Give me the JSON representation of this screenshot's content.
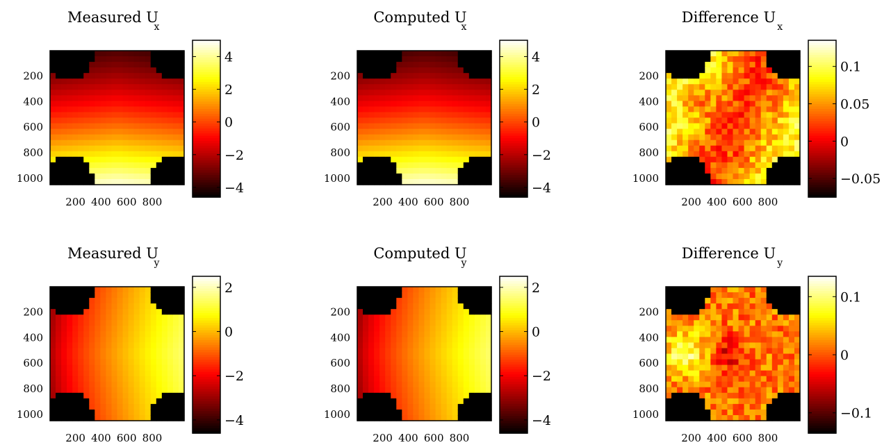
{
  "chart_data": [
    {
      "type": "heatmap",
      "title": "Measured U",
      "subscript": "x",
      "colormap": "hot",
      "x_ticks": [
        "200",
        "400",
        "600",
        "800"
      ],
      "y_ticks": [
        "200",
        "400",
        "600",
        "800",
        "1000"
      ],
      "colorbar_ticks": [
        {
          "value": 4,
          "label": "4"
        },
        {
          "value": 2,
          "label": "2"
        },
        {
          "value": 0,
          "label": "0"
        },
        {
          "value": -2,
          "label": "−2"
        },
        {
          "value": -4,
          "label": "−4"
        }
      ],
      "clim": [
        -4.6,
        5
      ],
      "field": "ux"
    },
    {
      "type": "heatmap",
      "title": "Computed U",
      "subscript": "x",
      "colormap": "hot",
      "x_ticks": [
        "200",
        "400",
        "600",
        "800"
      ],
      "y_ticks": [
        "200",
        "400",
        "600",
        "800",
        "1000"
      ],
      "colorbar_ticks": [
        {
          "value": 4,
          "label": "4"
        },
        {
          "value": 2,
          "label": "2"
        },
        {
          "value": 0,
          "label": "0"
        },
        {
          "value": -2,
          "label": "−2"
        },
        {
          "value": -4,
          "label": "−4"
        }
      ],
      "clim": [
        -4.6,
        5
      ],
      "field": "ux"
    },
    {
      "type": "heatmap",
      "title": "Difference U",
      "subscript": "x",
      "colormap": "hot",
      "x_ticks": [
        "200",
        "400",
        "600",
        "800"
      ],
      "y_ticks": [
        "200",
        "400",
        "600",
        "800",
        "1000"
      ],
      "colorbar_ticks": [
        {
          "value": 0.1,
          "label": "0.1"
        },
        {
          "value": 0.05,
          "label": "0.05"
        },
        {
          "value": 0,
          "label": "0"
        },
        {
          "value": -0.05,
          "label": "−0.05"
        }
      ],
      "clim": [
        -0.075,
        0.135
      ],
      "field": "dx"
    },
    {
      "type": "heatmap",
      "title": "Measured U",
      "subscript": "y",
      "colormap": "hot",
      "x_ticks": [
        "200",
        "400",
        "600",
        "800"
      ],
      "y_ticks": [
        "200",
        "400",
        "600",
        "800",
        "1000"
      ],
      "colorbar_ticks": [
        {
          "value": 2,
          "label": "2"
        },
        {
          "value": 0,
          "label": "0"
        },
        {
          "value": -2,
          "label": "−2"
        },
        {
          "value": -4,
          "label": "−4"
        }
      ],
      "clim": [
        -4.6,
        2.5
      ],
      "field": "uy"
    },
    {
      "type": "heatmap",
      "title": "Computed U",
      "subscript": "y",
      "colormap": "hot",
      "x_ticks": [
        "200",
        "400",
        "600",
        "800"
      ],
      "y_ticks": [
        "200",
        "400",
        "600",
        "800",
        "1000"
      ],
      "colorbar_ticks": [
        {
          "value": 2,
          "label": "2"
        },
        {
          "value": 0,
          "label": "0"
        },
        {
          "value": -2,
          "label": "−2"
        },
        {
          "value": -4,
          "label": "−4"
        }
      ],
      "clim": [
        -4.6,
        2.5
      ],
      "field": "uy"
    },
    {
      "type": "heatmap",
      "title": "Difference U",
      "subscript": "y",
      "colormap": "hot",
      "x_ticks": [
        "200",
        "400",
        "600",
        "800"
      ],
      "y_ticks": [
        "200",
        "400",
        "600",
        "800",
        "1000"
      ],
      "colorbar_ticks": [
        {
          "value": 0.1,
          "label": "0.1"
        },
        {
          "value": 0,
          "label": "0"
        },
        {
          "value": -0.1,
          "label": "−0.1"
        }
      ],
      "clim": [
        -0.135,
        0.135
      ],
      "field": "dy"
    }
  ]
}
